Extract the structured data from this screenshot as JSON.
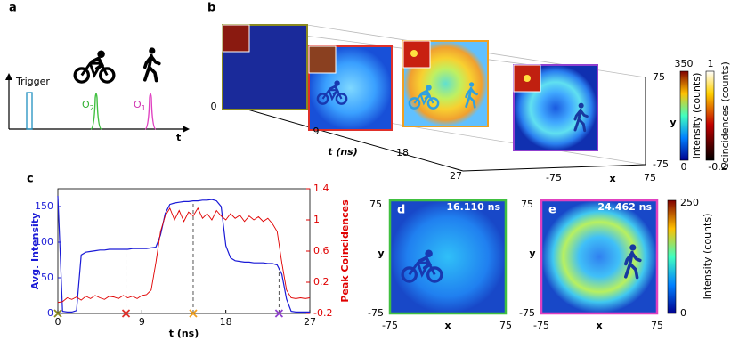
{
  "panel_a": {
    "label": "a",
    "trigger": "Trigger",
    "o2": {
      "main": "O",
      "sub": "2"
    },
    "o1": {
      "main": "O",
      "sub": "1"
    },
    "axis": "t"
  },
  "panel_b": {
    "label": "b",
    "t_ticks": [
      0,
      9,
      18,
      27
    ],
    "t_label": "t (ns)",
    "y_ticks": [
      75,
      -75
    ],
    "y_label": "y",
    "x_ticks": [
      -75,
      75
    ],
    "x_label": "x",
    "intensity_colorbar": {
      "ticks": [
        350,
        0
      ],
      "label": "Intensity (counts)"
    },
    "coincidence_colorbar": {
      "ticks": [
        1,
        -0.2
      ],
      "label": "Coincidences (counts)"
    }
  },
  "chart_data": {
    "type": "line",
    "panel_label": "c",
    "xlabel": "t (ns)",
    "x": [
      0,
      0.5,
      1,
      1.5,
      2,
      2.5,
      3,
      3.5,
      4,
      4.5,
      5,
      5.5,
      6,
      6.5,
      7,
      7.5,
      8,
      8.5,
      9,
      9.5,
      10,
      10.5,
      11,
      11.5,
      12,
      12.5,
      13,
      13.5,
      14,
      14.5,
      15,
      15.5,
      16,
      16.5,
      17,
      17.5,
      18,
      18.5,
      19,
      19.5,
      20,
      20.5,
      21,
      21.5,
      22,
      22.5,
      23,
      23.5,
      24,
      24.5,
      25,
      25.5,
      26,
      26.5,
      27
    ],
    "series": [
      {
        "name": "Avg. Intensity",
        "color": "#1a1ad6",
        "values": [
          165,
          3,
          2,
          2,
          4,
          82,
          86,
          87,
          88,
          89,
          89,
          90,
          90,
          90,
          90,
          90,
          91,
          91,
          91,
          91,
          92,
          93,
          110,
          140,
          153,
          155,
          156,
          157,
          157,
          158,
          158,
          159,
          159,
          160,
          158,
          150,
          95,
          78,
          74,
          73,
          72,
          72,
          71,
          71,
          71,
          70,
          70,
          68,
          55,
          20,
          3,
          2,
          2,
          2,
          2
        ]
      },
      {
        "name": "Peak Coincidences",
        "color": "#e00000",
        "axis": "y2",
        "values": [
          -0.06,
          -0.05,
          0.0,
          -0.02,
          0.01,
          -0.03,
          0.02,
          -0.01,
          0.03,
          0.0,
          -0.02,
          0.02,
          0.01,
          -0.01,
          0.03,
          0.0,
          0.02,
          -0.01,
          0.03,
          0.04,
          0.1,
          0.45,
          0.85,
          1.05,
          1.15,
          1.0,
          1.12,
          0.98,
          1.1,
          1.05,
          1.15,
          1.02,
          1.08,
          1.0,
          1.12,
          1.05,
          1.0,
          1.08,
          1.02,
          1.06,
          0.98,
          1.05,
          1.0,
          1.04,
          0.98,
          1.02,
          0.95,
          0.85,
          0.45,
          0.1,
          0.0,
          -0.01,
          0.0,
          -0.01,
          0.0
        ]
      }
    ],
    "xlim": [
      0,
      27
    ],
    "xticks": [
      0,
      9,
      18,
      27
    ],
    "ylim": [
      0,
      175
    ],
    "yticks": [
      0,
      50,
      100,
      150
    ],
    "y2lim": [
      -0.2,
      1.4
    ],
    "y2ticks": [
      -0.2,
      0.2,
      0.6,
      1,
      1.4
    ],
    "markers": [
      {
        "x": 0,
        "color": "#8a8a20"
      },
      {
        "x": 7.3,
        "color": "#e0302a"
      },
      {
        "x": 14.5,
        "color": "#f0a020"
      },
      {
        "x": 23.7,
        "color": "#9040d0"
      }
    ]
  },
  "panel_d": {
    "label": "d",
    "time": "16.110 ns",
    "y_label": "y",
    "y_ticks": [
      75,
      -75
    ],
    "x_label": "x",
    "x_ticks": [
      -75,
      75
    ]
  },
  "panel_e": {
    "label": "e",
    "time": "24.462 ns",
    "y_label": "y",
    "y_ticks": [
      75,
      -75
    ],
    "x_label": "x",
    "x_ticks": [
      -75,
      75
    ],
    "colorbar": {
      "ticks": [
        250,
        0
      ],
      "label": "Intensity (counts)"
    }
  }
}
